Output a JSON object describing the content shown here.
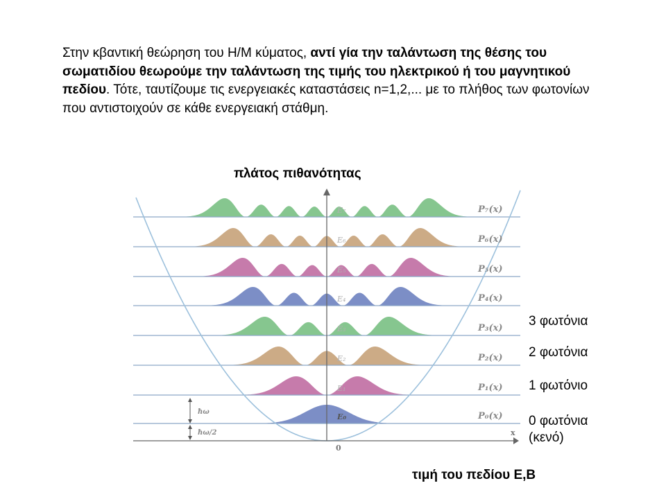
{
  "paragraph": {
    "normal1": "Στην κβαντική θεώρηση του Η/Μ κύματος, ",
    "bold": "αντί γία την ταλάντωση της θέσης του σωματιδίου θεωρούμε την ταλάντωση της τιμής του ηλεκτρικού ή του μαγνητικού πεδίου",
    "normal2": ". Τότε, ταυτίζουμε τις ενεργειακές καταστάσεις n=1,2,... με το πλήθος των φωτονίων που αντιστοιχούν σε κάθε ενεργειακή στάθμη."
  },
  "axes": {
    "y_title": "πλάτος πιθανότητας",
    "x_title": "τιμή του πεδίου Ε,Β",
    "x_symbol": "x",
    "origin": "0"
  },
  "levels": [
    {
      "n": 0,
      "energy_label": "E₀",
      "prob_label": "P₀(x)",
      "color": "#4a62b0"
    },
    {
      "n": 1,
      "energy_label": "E₁",
      "prob_label": "P₁(x)",
      "color": "#b0488a"
    },
    {
      "n": 2,
      "energy_label": "E₂",
      "prob_label": "P₂(x)",
      "color": "#b88a58"
    },
    {
      "n": 3,
      "energy_label": "E₃",
      "prob_label": "P₃(x)",
      "color": "#58b064"
    },
    {
      "n": 4,
      "energy_label": "E₄",
      "prob_label": "P₄(x)",
      "color": "#4a62b0"
    },
    {
      "n": 5,
      "energy_label": "E₅",
      "prob_label": "P₅(x)",
      "color": "#b0488a"
    },
    {
      "n": 6,
      "energy_label": "E₆",
      "prob_label": "P₆(x)",
      "color": "#b88a58"
    },
    {
      "n": 7,
      "energy_label": "E₇",
      "prob_label": "P₇(x)",
      "color": "#58b064"
    }
  ],
  "spacing_labels": {
    "hw": "ħω",
    "hw_half": "ħω/2"
  },
  "photon_labels": {
    "n3": "3 φωτόνια",
    "n2": "2 φωτόνια",
    "n1": "1 φωτόνιο",
    "n0_line1": "0 φωτόνια",
    "n0_line2": "(κενό)"
  },
  "colors": {
    "parabola": "#9cc0dc",
    "level_line": "#8ca8c8",
    "axis": "#666666"
  }
}
